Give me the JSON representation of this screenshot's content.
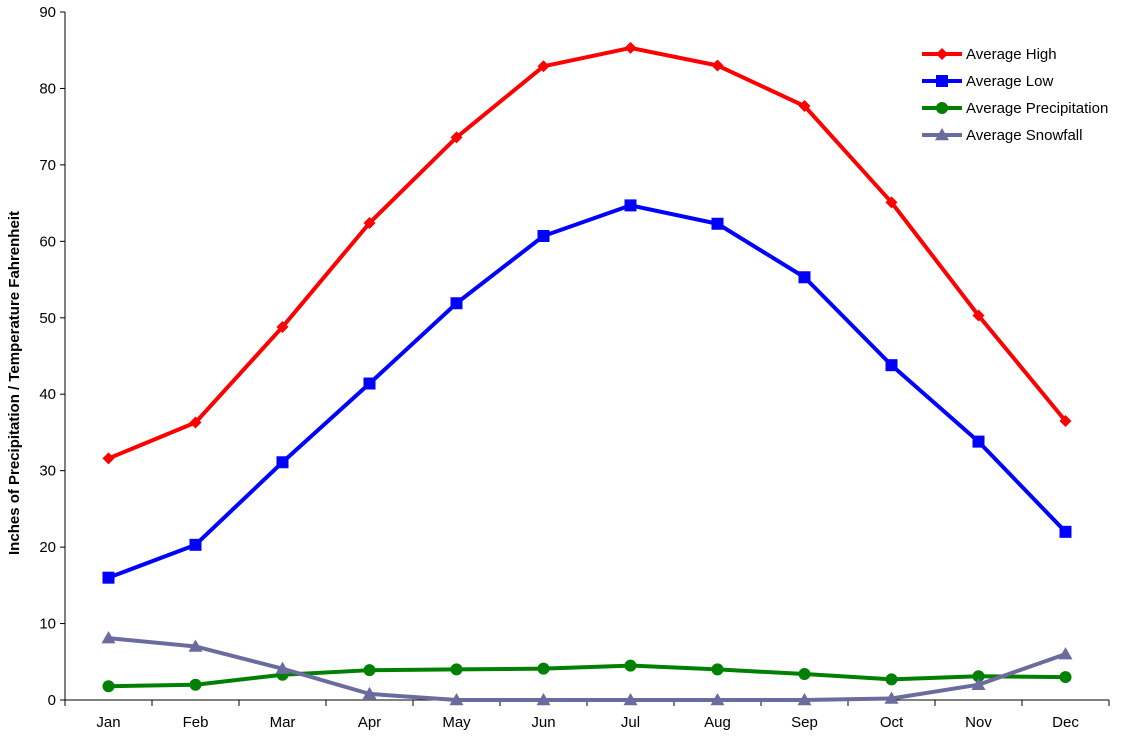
{
  "chart_data": {
    "type": "line",
    "title": "",
    "xlabel": "",
    "ylabel": "Inches of Precipitation / Temperature Fahrenheit",
    "categories": [
      "Jan",
      "Feb",
      "Mar",
      "Apr",
      "May",
      "Jun",
      "Jul",
      "Aug",
      "Sep",
      "Oct",
      "Nov",
      "Dec"
    ],
    "ylim": [
      0,
      90
    ],
    "yticks": [
      "0",
      "10",
      "20",
      "30",
      "40",
      "50",
      "60",
      "70",
      "80",
      "90"
    ],
    "grid": false,
    "legend_position": "top-right",
    "series": [
      {
        "name": "Average High",
        "color": "#ff0000",
        "marker": "diamond",
        "values": [
          31.6,
          36.3,
          48.8,
          62.4,
          73.6,
          82.9,
          85.3,
          83.0,
          77.7,
          65.1,
          50.3,
          36.5
        ]
      },
      {
        "name": "Average Low",
        "color": "#0000ff",
        "marker": "square",
        "values": [
          16.0,
          20.3,
          31.1,
          41.4,
          51.9,
          60.7,
          64.7,
          62.3,
          55.3,
          43.8,
          33.8,
          22.0
        ]
      },
      {
        "name": "Average Precipitation",
        "color": "#008000",
        "marker": "circle",
        "values": [
          1.8,
          2.0,
          3.3,
          3.9,
          4.0,
          4.1,
          4.5,
          4.0,
          3.4,
          2.7,
          3.1,
          3.0
        ]
      },
      {
        "name": "Average Snowfall",
        "color": "#6b6b9f",
        "marker": "triangle",
        "values": [
          8.1,
          7.0,
          4.1,
          0.8,
          0,
          0,
          0,
          0,
          0,
          0.2,
          2.0,
          6.0
        ]
      }
    ]
  }
}
